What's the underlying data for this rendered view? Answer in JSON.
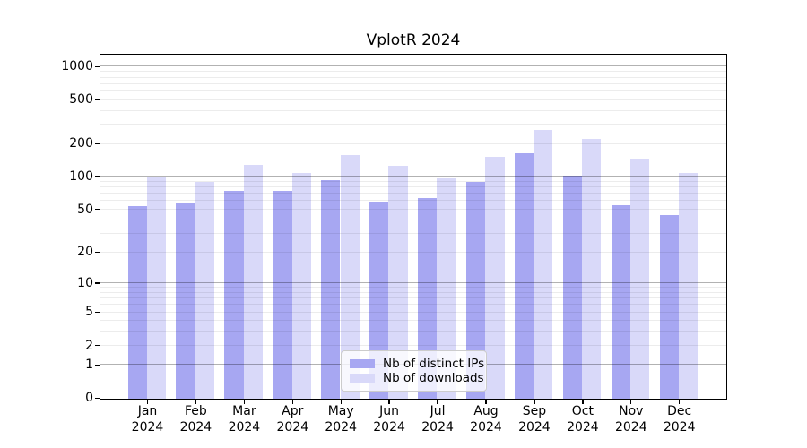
{
  "title": "VplotR 2024",
  "legend": {
    "items": [
      {
        "label": "Nb of distinct IPs",
        "color": "#a7a7f2"
      },
      {
        "label": "Nb of downloads",
        "color": "#d9d9f9"
      }
    ]
  },
  "axis": {
    "ytick_labels": [
      "0",
      "1",
      "2",
      "5",
      "10",
      "20",
      "50",
      "100",
      "200",
      "500",
      "1000"
    ],
    "year_line": "2024"
  },
  "chart_data": {
    "type": "bar",
    "title": "VplotR 2024",
    "scale": "log1p",
    "categories": [
      "Jan 2024",
      "Feb 2024",
      "Mar 2024",
      "Apr 2024",
      "May 2024",
      "Jun 2024",
      "Jul 2024",
      "Aug 2024",
      "Sep 2024",
      "Oct 2024",
      "Nov 2024",
      "Dec 2024"
    ],
    "series": [
      {
        "name": "Nb of distinct IPs",
        "color": "#a7a7f2",
        "values": [
          54,
          58,
          75,
          75,
          94,
          60,
          65,
          90,
          166,
          103,
          56,
          45
        ]
      },
      {
        "name": "Nb of downloads",
        "color": "#d9d9f9",
        "values": [
          100,
          90,
          130,
          110,
          160,
          128,
          98,
          155,
          270,
          222,
          146,
          110
        ]
      }
    ],
    "yticks": [
      0,
      1,
      2,
      5,
      10,
      20,
      50,
      100,
      200,
      500,
      1000
    ],
    "major_gridlines": [
      1,
      10,
      100,
      1000
    ],
    "minor_gridlines": [
      2,
      3,
      4,
      5,
      6,
      7,
      8,
      9,
      20,
      30,
      40,
      50,
      60,
      70,
      80,
      90,
      200,
      300,
      400,
      500,
      600,
      700,
      800,
      900
    ],
    "ylim": [
      0,
      1265
    ],
    "xlabel": "",
    "ylabel": "",
    "grid": "horizontal",
    "legend_position": "lower center"
  }
}
